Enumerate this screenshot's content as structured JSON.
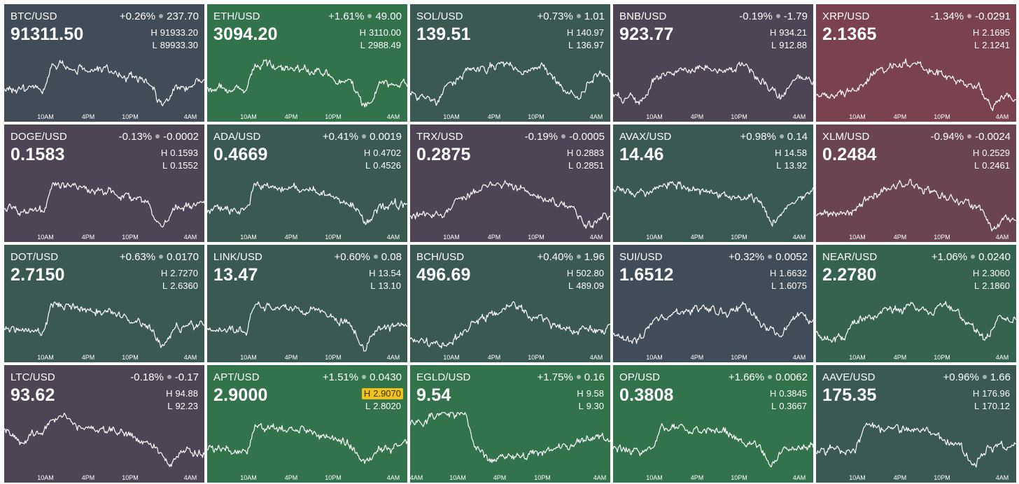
{
  "colors": {
    "up_strong": "#33734c",
    "up": "#366250",
    "up_soft": "#3b5953",
    "neutral": "#404c58",
    "down_soft": "#4d4456",
    "down": "#6a4450",
    "down_strong": "#7a424f",
    "line": "#ffffff",
    "highlight": "#f1c21b"
  },
  "axis_labels": [
    "10AM",
    "4PM",
    "10PM",
    "4AM"
  ],
  "axis_labels_alt": [
    "4AM",
    "10AM",
    "4PM",
    "10PM",
    "4AM"
  ],
  "tiles": [
    {
      "pair": "BTC/USD",
      "pct": "+0.26%",
      "abs": "237.70",
      "price": "91311.50",
      "high": "91933.20",
      "low": "89933.30",
      "tone": "neutral",
      "shape": "hump_late_dip"
    },
    {
      "pair": "ETH/USD",
      "pct": "+1.61%",
      "abs": "49.00",
      "price": "3094.20",
      "high": "3110.00",
      "low": "2988.49",
      "tone": "up_strong",
      "shape": "hump_late_dip"
    },
    {
      "pair": "SOL/USD",
      "pct": "+0.73%",
      "abs": "1.01",
      "price": "139.51",
      "high": "140.97",
      "low": "136.97",
      "tone": "up_soft",
      "shape": "choppy"
    },
    {
      "pair": "BNB/USD",
      "pct": "-0.19%",
      "abs": "-1.79",
      "price": "923.77",
      "high": "934.21",
      "low": "912.88",
      "tone": "down_soft",
      "shape": "choppy"
    },
    {
      "pair": "XRP/USD",
      "pct": "-1.34%",
      "abs": "-0.0291",
      "price": "2.1365",
      "high": "2.1695",
      "low": "2.1241",
      "tone": "down_strong",
      "shape": "hump_fall"
    },
    {
      "pair": "DOGE/USD",
      "pct": "-0.13%",
      "abs": "-0.0002",
      "price": "0.1583",
      "high": "0.1593",
      "low": "0.1552",
      "tone": "down_soft",
      "shape": "hump_late_dip"
    },
    {
      "pair": "ADA/USD",
      "pct": "+0.41%",
      "abs": "0.0019",
      "price": "0.4669",
      "high": "0.4702",
      "low": "0.4526",
      "tone": "up_soft",
      "shape": "hump_late_dip"
    },
    {
      "pair": "TRX/USD",
      "pct": "-0.19%",
      "abs": "-0.0005",
      "price": "0.2875",
      "high": "0.2883",
      "low": "0.2851",
      "tone": "down_soft",
      "shape": "hump_fall"
    },
    {
      "pair": "AVAX/USD",
      "pct": "+0.98%",
      "abs": "0.14",
      "price": "14.46",
      "high": "14.58",
      "low": "13.92",
      "tone": "up_soft",
      "shape": "plateau_dip"
    },
    {
      "pair": "XLM/USD",
      "pct": "-0.94%",
      "abs": "-0.0024",
      "price": "0.2484",
      "high": "0.2529",
      "low": "0.2461",
      "tone": "down",
      "shape": "hump_fall"
    },
    {
      "pair": "DOT/USD",
      "pct": "+0.63%",
      "abs": "0.0170",
      "price": "2.7150",
      "high": "2.7270",
      "low": "2.6360",
      "tone": "up_soft",
      "shape": "hump_late_dip"
    },
    {
      "pair": "LINK/USD",
      "pct": "+0.60%",
      "abs": "0.08",
      "price": "13.47",
      "high": "13.54",
      "low": "13.10",
      "tone": "up_soft",
      "shape": "hump_late_dip"
    },
    {
      "pair": "BCH/USD",
      "pct": "+0.40%",
      "abs": "1.96",
      "price": "496.69",
      "high": "502.80",
      "low": "489.09",
      "tone": "up_soft",
      "shape": "rise_flat"
    },
    {
      "pair": "SUI/USD",
      "pct": "+0.32%",
      "abs": "0.0052",
      "price": "1.6512",
      "high": "1.6632",
      "low": "1.6075",
      "tone": "neutral",
      "shape": "choppy"
    },
    {
      "pair": "NEAR/USD",
      "pct": "+1.06%",
      "abs": "0.0240",
      "price": "2.2780",
      "high": "2.3060",
      "low": "2.1860",
      "tone": "up",
      "shape": "choppy"
    },
    {
      "pair": "LTC/USD",
      "pct": "-0.18%",
      "abs": "-0.17",
      "price": "93.62",
      "high": "94.88",
      "low": "92.23",
      "tone": "down_soft",
      "shape": "early_peak_fall"
    },
    {
      "pair": "APT/USD",
      "pct": "+1.51%",
      "abs": "0.0430",
      "price": "2.9000",
      "high": "2.9070",
      "low": "2.8020",
      "tone": "up_strong",
      "shape": "hump_late_dip",
      "high_highlight": true
    },
    {
      "pair": "EGLD/USD",
      "pct": "+1.75%",
      "abs": "0.16",
      "price": "9.54",
      "high": "9.58",
      "low": "9.30",
      "tone": "up_strong",
      "shape": "plateau_drop",
      "alt_axis": true
    },
    {
      "pair": "OP/USD",
      "pct": "+1.66%",
      "abs": "0.0062",
      "price": "0.3808",
      "high": "0.3845",
      "low": "0.3667",
      "tone": "up_strong",
      "shape": "hump_late_dip"
    },
    {
      "pair": "AAVE/USD",
      "pct": "+0.96%",
      "abs": "1.66",
      "price": "175.35",
      "high": "176.96",
      "low": "170.12",
      "tone": "up_soft",
      "shape": "hump_late_dip"
    }
  ]
}
